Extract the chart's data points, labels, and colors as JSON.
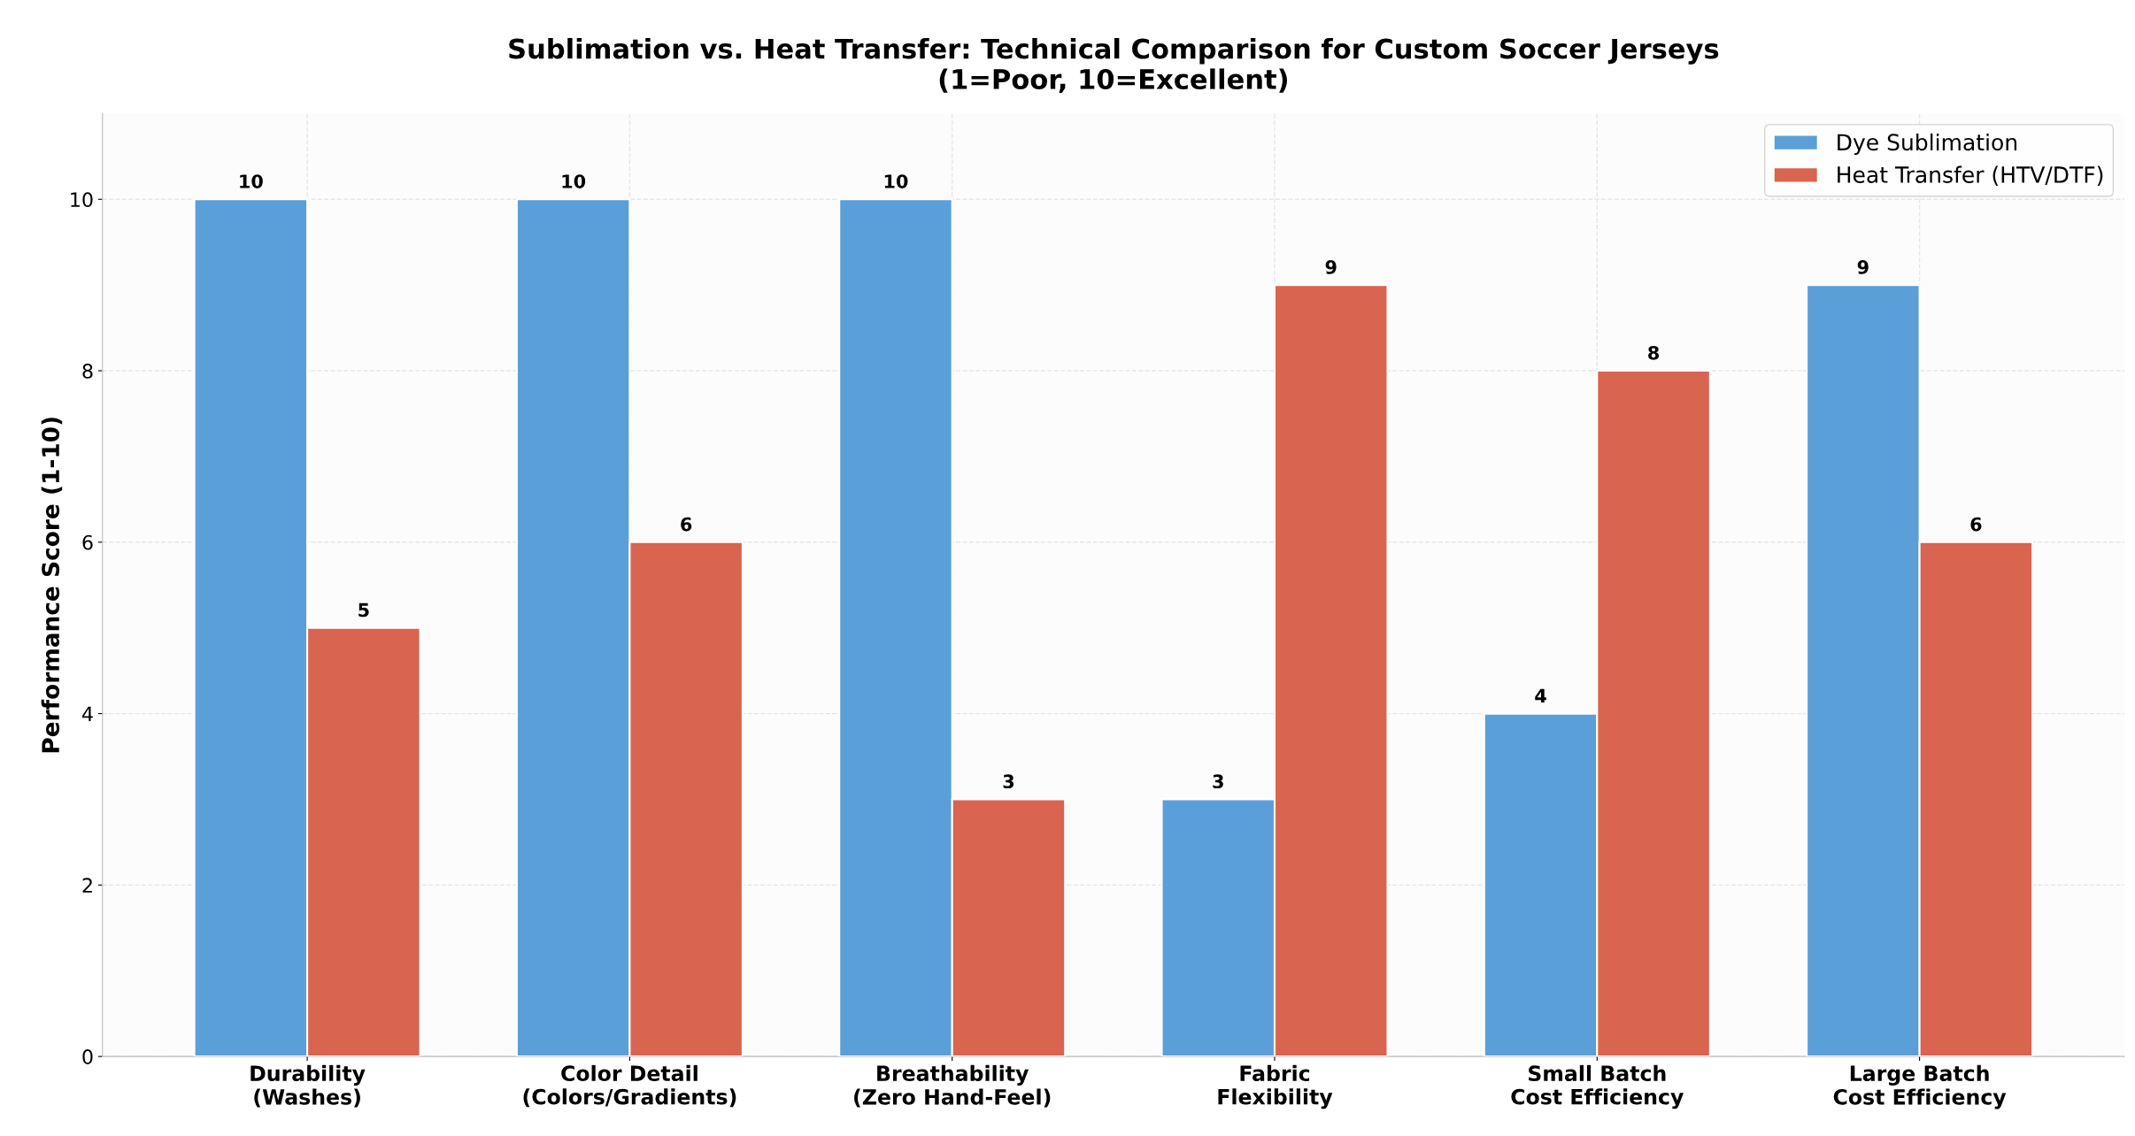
{
  "chart_data": {
    "type": "bar",
    "title": "Sublimation vs. Heat Transfer: Technical Comparison for Custom Soccer Jerseys\n(1=Poor, 10=Excellent)",
    "ylabel": "Performance Score (1-10)",
    "categories": [
      "Durability\n(Washes)",
      "Color Detail\n(Colors/Gradients)",
      "Breathability\n(Zero Hand-Feel)",
      "Fabric\nFlexibility",
      "Small Batch\nCost Efficiency",
      "Large Batch\nCost Efficiency"
    ],
    "series": [
      {
        "name": "Dye Sublimation",
        "color": "#5b9fd8",
        "values": [
          10,
          10,
          10,
          3,
          4,
          9
        ]
      },
      {
        "name": "Heat Transfer (HTV/DTF)",
        "color": "#d9644f",
        "values": [
          5,
          6,
          3,
          9,
          8,
          6
        ]
      }
    ],
    "ylim": [
      0,
      11
    ],
    "yticks": [
      0,
      2,
      4,
      6,
      8,
      10
    ],
    "grid": true,
    "legend": "top right",
    "data_labels": true
  }
}
